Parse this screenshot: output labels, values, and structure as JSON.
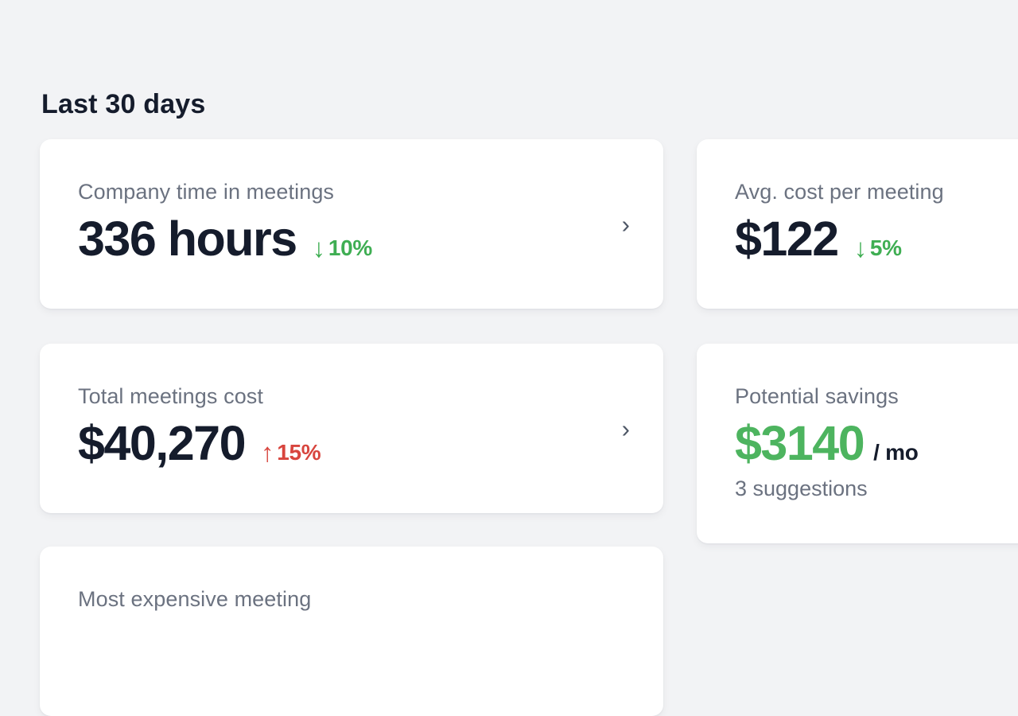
{
  "page": {
    "heading": "Last 30 days"
  },
  "colors": {
    "background": "#f2f3f5",
    "card_background": "#ffffff",
    "text_dark": "#151c2c",
    "text_gray": "#6b7280",
    "green_change": "#3fae53",
    "green_savings": "#4db45f",
    "red_change": "#d8453e",
    "chevron_gray": "#4e5766"
  },
  "cards": {
    "company_time": {
      "label": "Company time in meetings",
      "value": "336 hours",
      "change_arrow": "↓",
      "change": "10%",
      "change_direction": "down",
      "chevron": "›"
    },
    "avg_cost": {
      "label": "Avg. cost per meeting",
      "value": "$122",
      "change_arrow": "↓",
      "change": "5%",
      "change_direction": "down"
    },
    "total_cost": {
      "label": "Total meetings cost",
      "value": "$40,270",
      "change_arrow": "↑",
      "change": "15%",
      "change_direction": "up",
      "chevron": "›"
    },
    "potential_savings": {
      "label": "Potential savings",
      "value": "$3140",
      "unit": "/ mo",
      "subtext": "3 suggestions"
    },
    "most_expensive": {
      "label": "Most expensive meeting"
    }
  }
}
